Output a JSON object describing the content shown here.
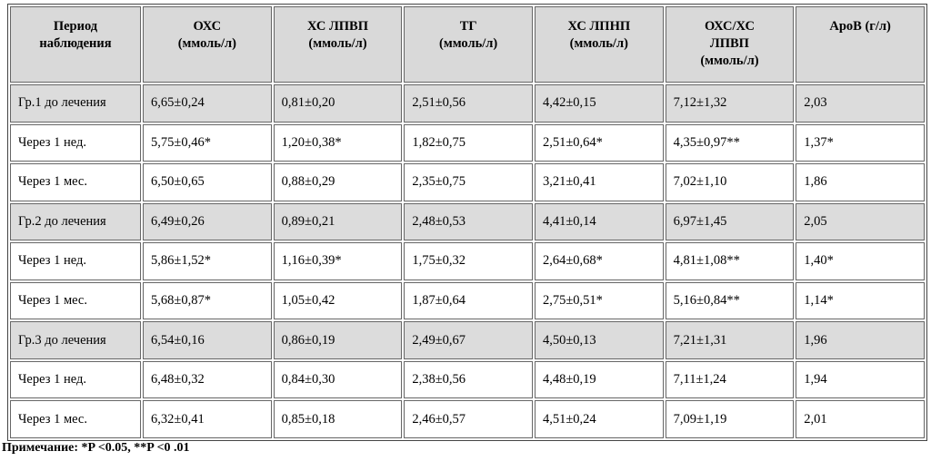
{
  "table": {
    "header": [
      "Период\nнаблюдения",
      "ОХС\n(ммоль/л)",
      "ХС ЛПВП\n(ммоль/л)",
      "ТГ\n(ммоль/л)",
      "ХС ЛПНП\n(ммоль/л)",
      "ОХС/ХС\nЛПВП\n(ммоль/л)",
      "АроВ (г/л)"
    ],
    "rows": [
      [
        "Гр.1 до лечения",
        "6,65±0,24",
        "0,81±0,20",
        "2,51±0,56",
        "4,42±0,15",
        "7,12±1,32",
        "2,03"
      ],
      [
        "Через 1 нед.",
        "5,75±0,46*",
        "1,20±0,38*",
        "1,82±0,75",
        "2,51±0,64*",
        "4,35±0,97**",
        "1,37*"
      ],
      [
        "Через 1 мес.",
        "6,50±0,65",
        "0,88±0,29",
        "2,35±0,75",
        "3,21±0,41",
        "7,02±1,10",
        "1,86"
      ],
      [
        "Гр.2 до лечения",
        "6,49±0,26",
        "0,89±0,21",
        "2,48±0,53",
        "4,41±0,14",
        "6,97±1,45",
        "2,05"
      ],
      [
        "Через 1 нед.",
        "5,86±1,52*",
        "1,16±0,39*",
        "1,75±0,32",
        "2,64±0,68*",
        "4,81±1,08**",
        "1,40*"
      ],
      [
        "Через 1 мес.",
        "5,68±0,87*",
        "1,05±0,42",
        "1,87±0,64",
        "2,75±0,51*",
        "5,16±0,84**",
        "1,14*"
      ],
      [
        "Гр.3 до лечения",
        "6,54±0,16",
        "0,86±0,19",
        "2,49±0,67",
        "4,50±0,13",
        "7,21±1,31",
        "1,96"
      ],
      [
        "Через 1 нед.",
        "6,48±0,32",
        "0,84±0,30",
        "2,38±0,56",
        "4,48±0,19",
        "7,11±1,24",
        "1,94"
      ],
      [
        "Через 1 мес.",
        "6,32±0,41",
        "0,85±0,18",
        "2,46±0,57",
        "4,51±0,24",
        "7,09±1,19",
        "2,01"
      ]
    ],
    "note": "Примечание: *P <0.05, **P <0 .01"
  }
}
